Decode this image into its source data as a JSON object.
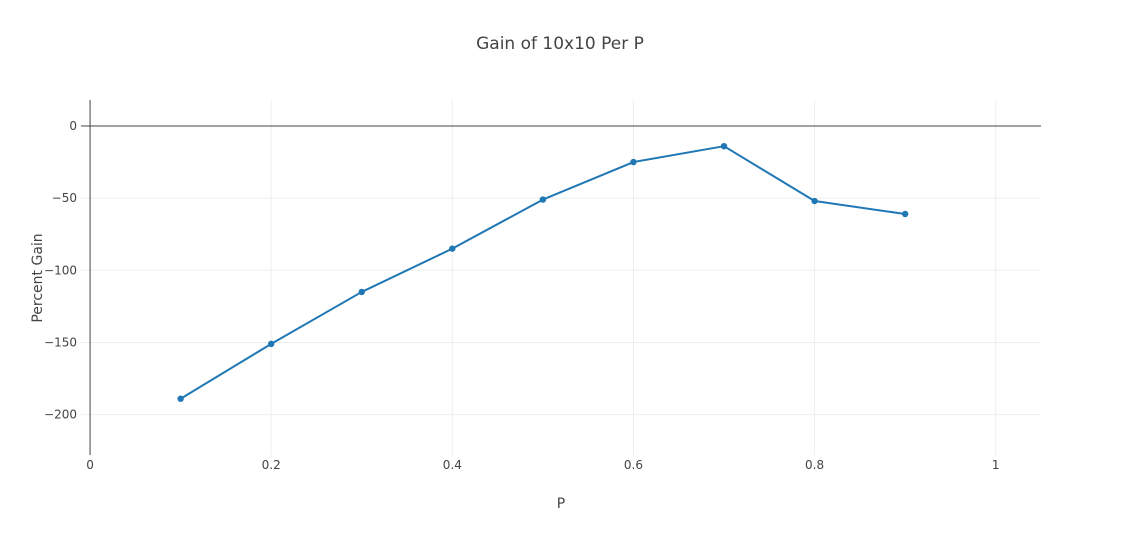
{
  "chart_data": {
    "type": "line",
    "title": "Gain of 10x10 Per P",
    "xlabel": "P",
    "ylabel": "Percent Gain",
    "xlim": [
      -0.01,
      1.05
    ],
    "ylim": [
      -228,
      18
    ],
    "x_ticks": [
      0,
      0.2,
      0.4,
      0.6,
      0.8,
      1
    ],
    "x_tick_labels": [
      "0",
      "0.2",
      "0.4",
      "0.6",
      "0.8",
      "1"
    ],
    "y_ticks": [
      0,
      -50,
      -100,
      -150,
      -200
    ],
    "y_tick_labels": [
      "0",
      "−50",
      "−100",
      "−150",
      "−200"
    ],
    "grid": true,
    "series": [
      {
        "color": "#1f77b4",
        "x": [
          0.1,
          0.2,
          0.3,
          0.4,
          0.5,
          0.6,
          0.7,
          0.8,
          0.9
        ],
        "y": [
          -189,
          -151,
          -115,
          -85,
          -51,
          -25,
          -14,
          -52,
          -61
        ]
      }
    ]
  }
}
